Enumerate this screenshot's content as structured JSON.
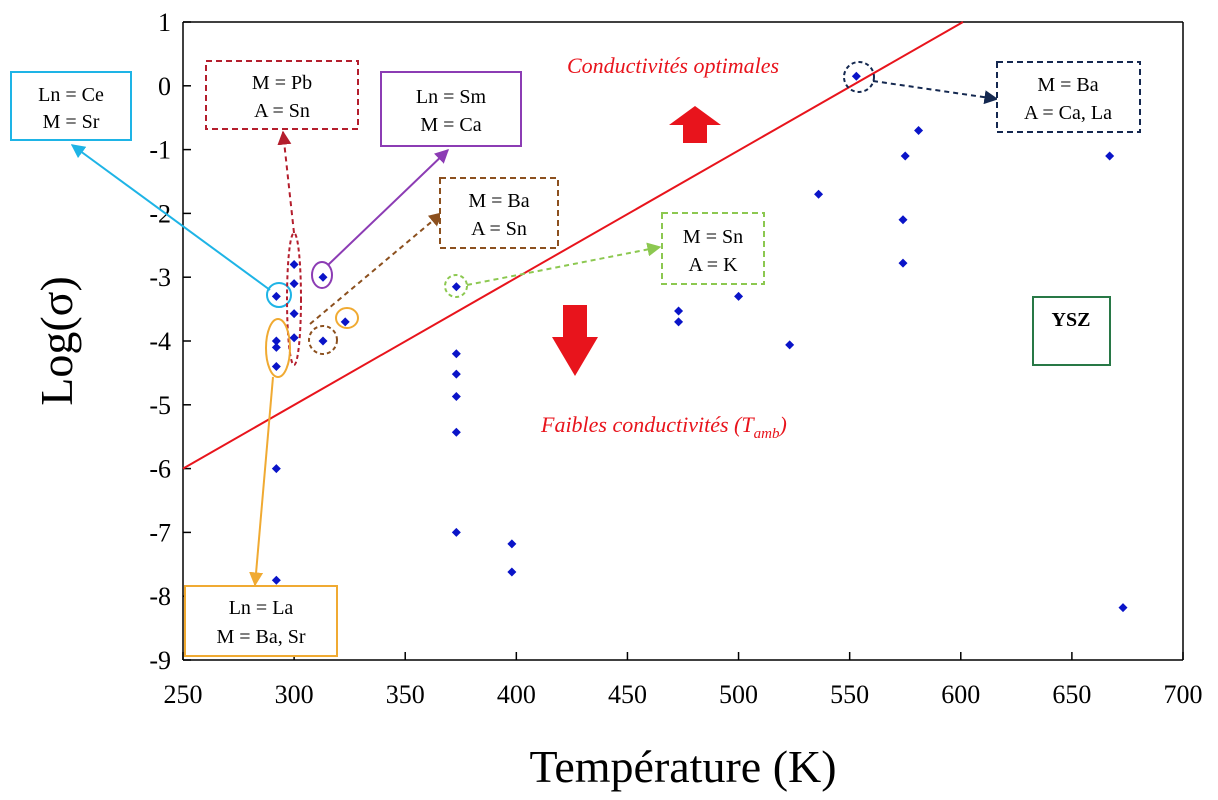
{
  "chart_data": {
    "type": "scatter",
    "title": "",
    "xlabel": "Température (K)",
    "ylabel": "Log(σ)",
    "xlim": [
      250,
      700
    ],
    "ylim": [
      -9,
      1
    ],
    "xticks": [
      250,
      300,
      350,
      400,
      450,
      500,
      550,
      600,
      650,
      700
    ],
    "yticks": [
      1,
      0,
      -1,
      -2,
      -3,
      -4,
      -5,
      -6,
      -7,
      -8,
      -9
    ],
    "grid": false,
    "series": [
      {
        "name": "",
        "color": "#0a14c8",
        "marker": "diamond",
        "points": [
          {
            "x": 292,
            "y": -3.3
          },
          {
            "x": 292,
            "y": -4.0
          },
          {
            "x": 292,
            "y": -4.1
          },
          {
            "x": 292,
            "y": -4.4
          },
          {
            "x": 292,
            "y": -6.0
          },
          {
            "x": 292,
            "y": -7.75
          },
          {
            "x": 300,
            "y": -2.8
          },
          {
            "x": 300,
            "y": -3.1
          },
          {
            "x": 300,
            "y": -3.57
          },
          {
            "x": 300,
            "y": -3.95
          },
          {
            "x": 313,
            "y": -3.0
          },
          {
            "x": 313,
            "y": -4.0
          },
          {
            "x": 323,
            "y": -3.7
          },
          {
            "x": 373,
            "y": -3.15
          },
          {
            "x": 373,
            "y": -4.2
          },
          {
            "x": 373,
            "y": -4.52
          },
          {
            "x": 373,
            "y": -4.87
          },
          {
            "x": 373,
            "y": -5.43
          },
          {
            "x": 373,
            "y": -7.0
          },
          {
            "x": 398,
            "y": -7.18
          },
          {
            "x": 398,
            "y": -7.62
          },
          {
            "x": 473,
            "y": -3.53
          },
          {
            "x": 473,
            "y": -3.7
          },
          {
            "x": 500,
            "y": -3.3
          },
          {
            "x": 523,
            "y": -4.06
          },
          {
            "x": 536,
            "y": -1.7
          },
          {
            "x": 553,
            "y": 0.15
          },
          {
            "x": 574,
            "y": -2.1
          },
          {
            "x": 574,
            "y": -2.78
          },
          {
            "x": 575,
            "y": -1.1
          },
          {
            "x": 581,
            "y": -0.7
          },
          {
            "x": 650,
            "y": -4.0
          },
          {
            "x": 667,
            "y": -1.1
          },
          {
            "x": 673,
            "y": -8.18
          }
        ]
      }
    ],
    "reference_line": {
      "color": "#e8141c",
      "from": {
        "x": 250,
        "y": -6.0
      },
      "to": {
        "x": 601,
        "y": 1.0
      }
    },
    "annotations": {
      "optimal": "Conductivités optimales",
      "low_main": "Faibles conductivités (T",
      "low_sub": "amb",
      "low_close": ")",
      "ysz": "YSZ",
      "arrow_color": "#e8141c"
    },
    "callouts": [
      {
        "id": "ce-sr",
        "lines": [
          "Ln = Ce",
          "M = Sr"
        ],
        "color": "#1eb4e6",
        "style": "solid"
      },
      {
        "id": "pb-sn",
        "lines": [
          "M = Pb",
          "A = Sn"
        ],
        "color": "#b41e2d",
        "style": "dashed"
      },
      {
        "id": "sm-ca",
        "lines": [
          "Ln = Sm",
          "M = Ca"
        ],
        "color": "#8c3cb4",
        "style": "solid"
      },
      {
        "id": "ba-sn",
        "lines": [
          "M = Ba",
          "A = Sn"
        ],
        "color": "#8c501e",
        "style": "dashed"
      },
      {
        "id": "sn-k",
        "lines": [
          "M = Sn",
          "A = K"
        ],
        "color": "#8cc850",
        "style": "dashed"
      },
      {
        "id": "ba-cala",
        "lines": [
          "M = Ba",
          "A = Ca, La"
        ],
        "color": "#142850",
        "style": "dashed"
      },
      {
        "id": "la-basr",
        "lines": [
          "Ln = La",
          "M = Ba, Sr"
        ],
        "color": "#f0aa32",
        "style": "solid"
      }
    ],
    "ysz_box_color": "#287846"
  }
}
